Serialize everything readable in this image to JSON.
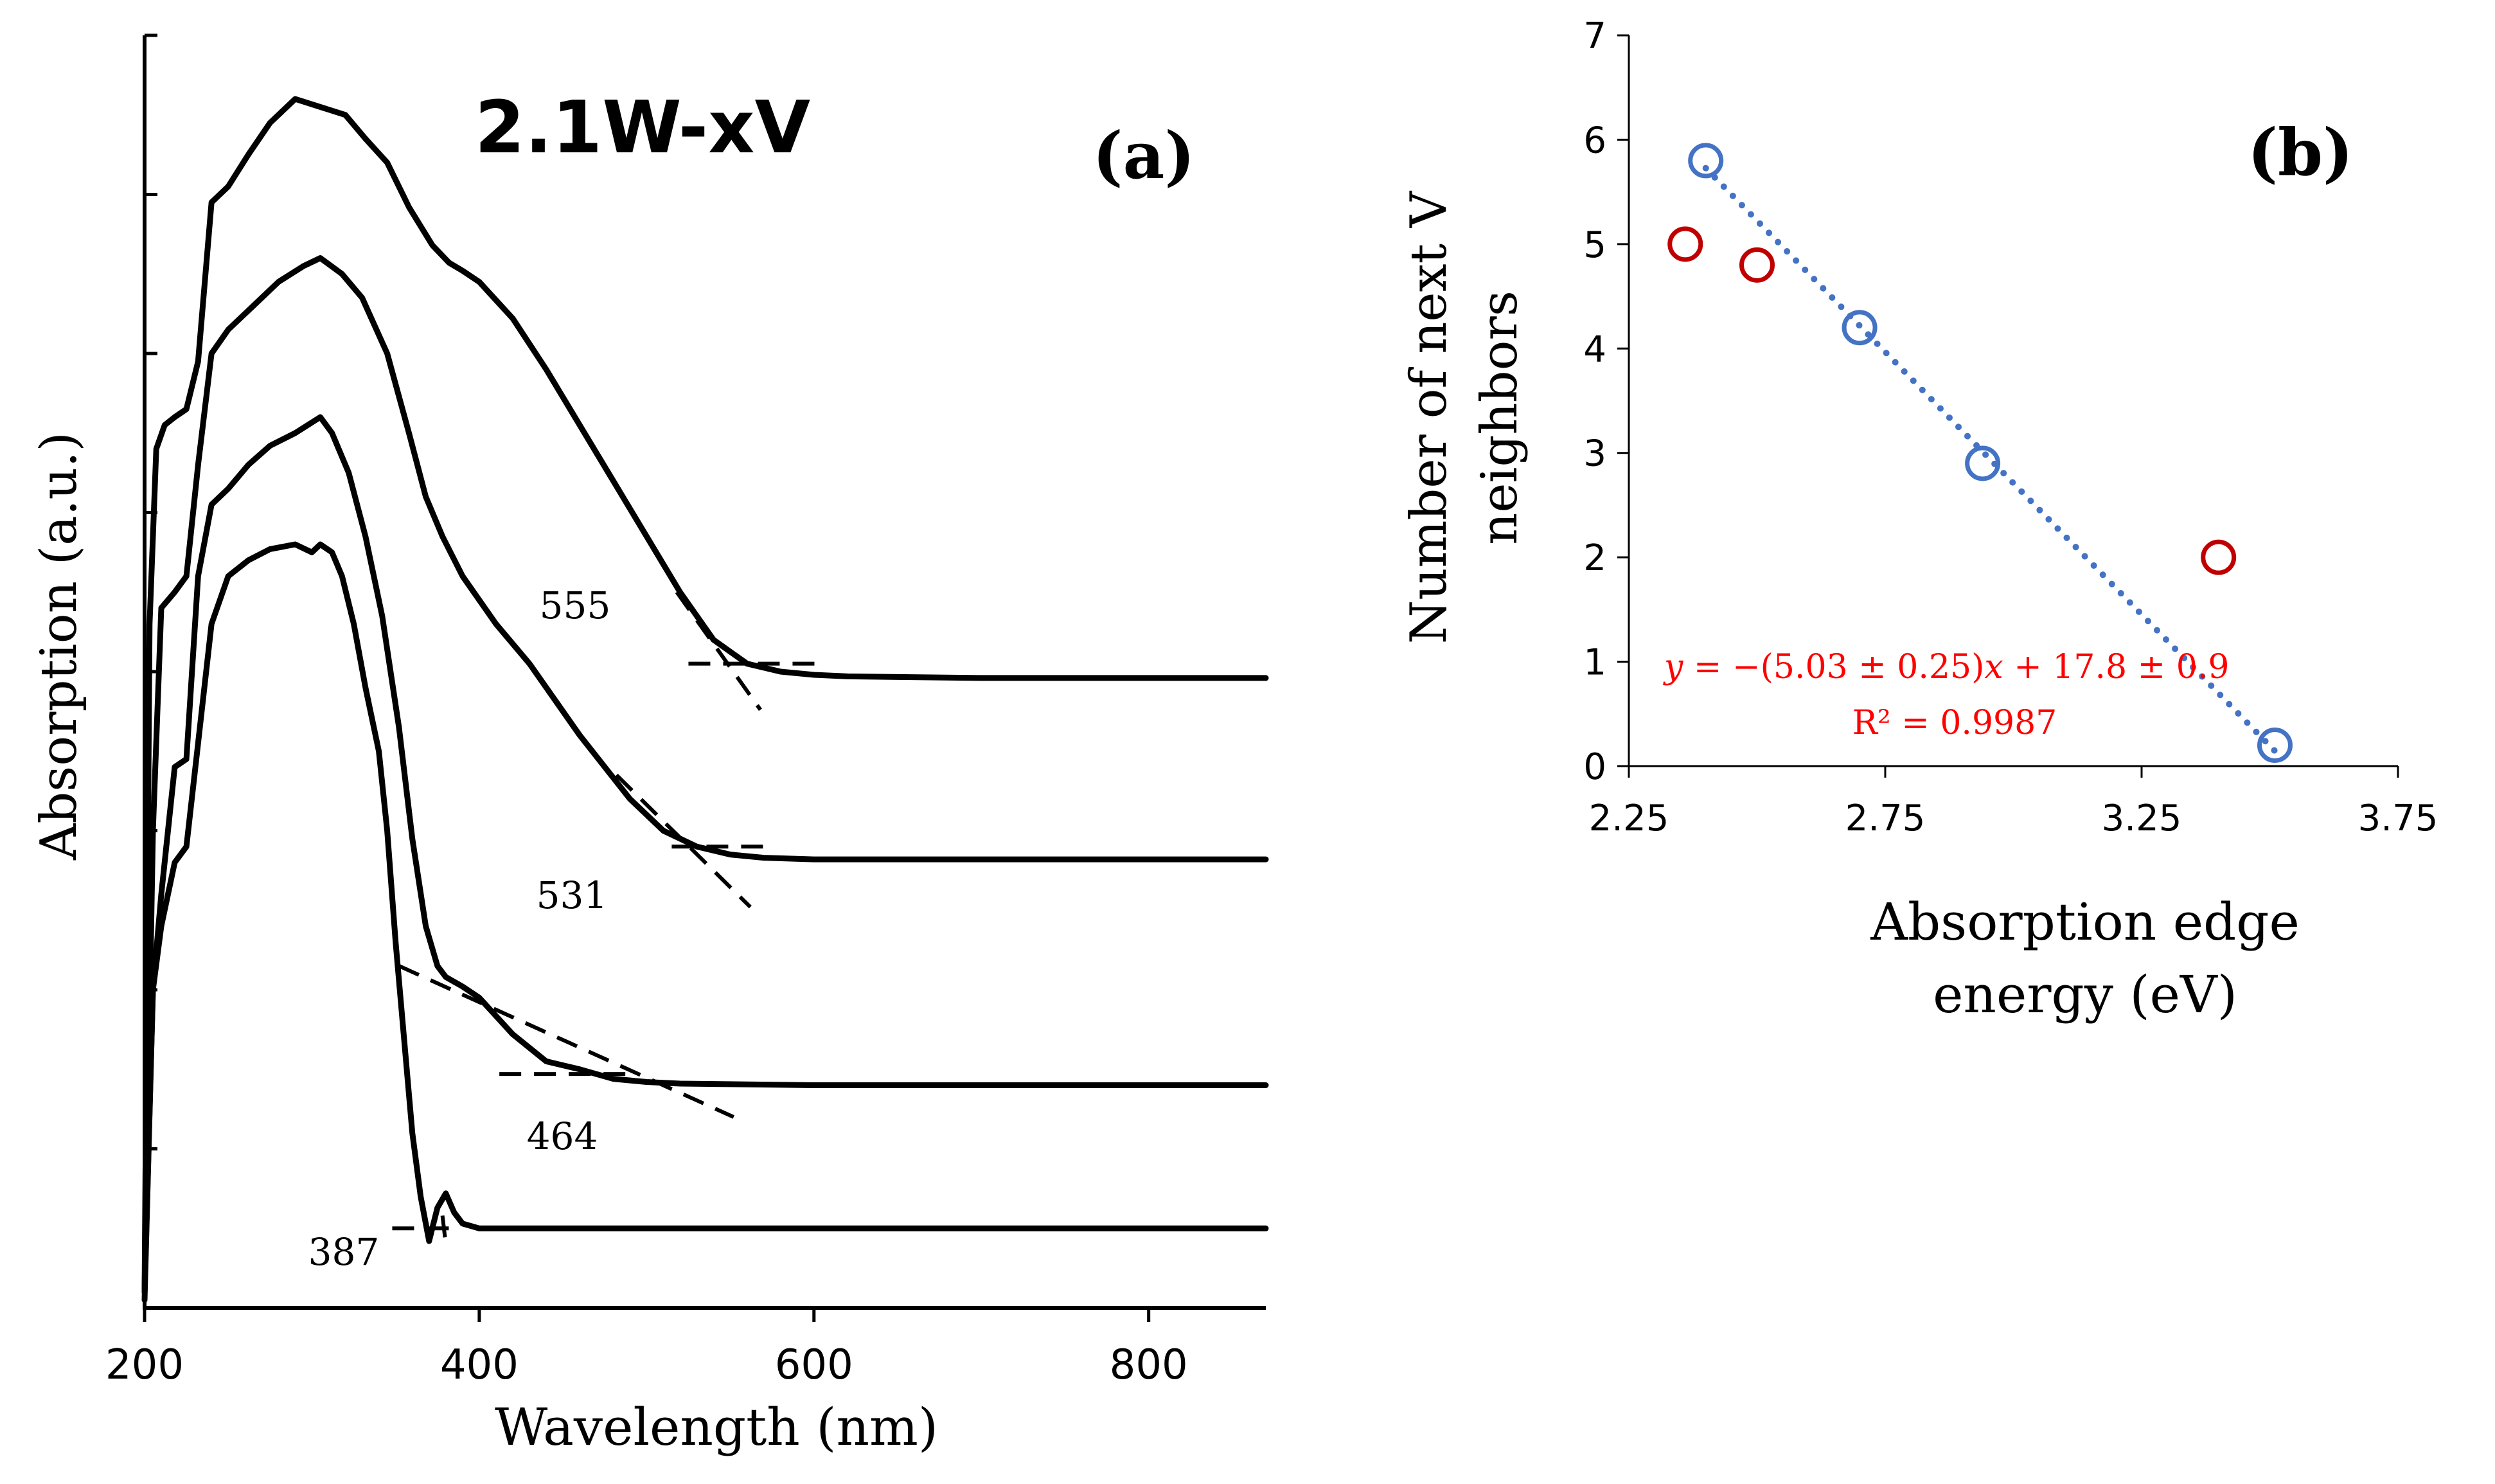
{
  "figure": {
    "panel_a_label": "(a)",
    "panel_b_label": "(b)"
  },
  "chart_data": [
    {
      "id": "a",
      "type": "line",
      "title": "2.1W-xV",
      "panel_label": "(a)",
      "xlabel": "Wavelength (nm)",
      "ylabel": "Absorption (a.u.)",
      "xlim": [
        200,
        870
      ],
      "ylim": [
        0,
        8
      ],
      "x_ticks": [
        200,
        400,
        600,
        800
      ],
      "y_ticks": [
        0,
        1,
        2,
        3,
        4,
        5,
        6,
        7,
        8
      ],
      "y_tick_labels_shown": false,
      "series": [
        {
          "name": "curve-555",
          "edge_label": "555",
          "x": [
            200,
            203,
            207,
            212,
            218,
            225,
            232,
            240,
            250,
            262,
            275,
            290,
            305,
            320,
            332,
            345,
            358,
            372,
            382,
            390,
            400,
            420,
            440,
            460,
            480,
            500,
            520,
            540,
            560,
            580,
            600,
            620,
            700,
            800,
            870
          ],
          "y": [
            0.1,
            4.3,
            5.4,
            5.55,
            5.6,
            5.65,
            5.95,
            6.95,
            7.05,
            7.25,
            7.45,
            7.6,
            7.55,
            7.5,
            7.35,
            7.2,
            6.92,
            6.68,
            6.57,
            6.52,
            6.45,
            6.22,
            5.9,
            5.55,
            5.2,
            4.85,
            4.5,
            4.2,
            4.05,
            4.0,
            3.98,
            3.97,
            3.96,
            3.96,
            3.96
          ],
          "edge_tangent": {
            "x": [
              518,
              568
            ],
            "y": [
              4.5,
              3.76
            ]
          },
          "baseline_tangent": {
            "x": [
              525,
              605
            ],
            "y": [
              4.05,
              4.05
            ]
          }
        },
        {
          "name": "curve-531",
          "edge_label": "531",
          "x": [
            200,
            205,
            210,
            218,
            225,
            232,
            240,
            250,
            265,
            280,
            295,
            305,
            318,
            330,
            345,
            358,
            368,
            378,
            390,
            410,
            430,
            460,
            490,
            510,
            530,
            550,
            570,
            600,
            700,
            800,
            870
          ],
          "y": [
            0.1,
            3.0,
            4.4,
            4.5,
            4.6,
            5.3,
            6.0,
            6.15,
            6.3,
            6.45,
            6.55,
            6.6,
            6.5,
            6.35,
            6.0,
            5.5,
            5.1,
            4.85,
            4.6,
            4.3,
            4.05,
            3.6,
            3.2,
            3.0,
            2.9,
            2.85,
            2.83,
            2.82,
            2.82,
            2.82,
            2.82
          ],
          "edge_tangent": {
            "x": [
              482,
              562
            ],
            "y": [
              3.35,
              2.52
            ]
          },
          "baseline_tangent": {
            "x": [
              515,
              575
            ],
            "y": [
              2.9,
              2.9
            ]
          }
        },
        {
          "name": "curve-464",
          "edge_label": "464",
          "x": [
            200,
            205,
            210,
            218,
            225,
            232,
            240,
            250,
            262,
            275,
            290,
            305,
            312,
            322,
            332,
            342,
            352,
            360,
            368,
            375,
            380,
            390,
            400,
            420,
            440,
            460,
            480,
            500,
            520,
            600,
            700,
            800,
            870
          ],
          "y": [
            0.05,
            2.0,
            2.6,
            3.4,
            3.45,
            4.6,
            5.05,
            5.15,
            5.3,
            5.42,
            5.5,
            5.6,
            5.5,
            5.25,
            4.85,
            4.35,
            3.65,
            2.95,
            2.4,
            2.15,
            2.08,
            2.02,
            1.95,
            1.72,
            1.55,
            1.5,
            1.44,
            1.42,
            1.41,
            1.4,
            1.4,
            1.4,
            1.4
          ],
          "edge_tangent": {
            "x": [
              352,
              552
            ],
            "y": [
              2.15,
              1.2
            ]
          },
          "baseline_tangent": {
            "x": [
              412,
              492
            ],
            "y": [
              1.47,
              1.47
            ]
          }
        },
        {
          "name": "curve-387",
          "edge_label": "387",
          "x": [
            200,
            205,
            210,
            218,
            225,
            232,
            240,
            250,
            262,
            275,
            290,
            300,
            305,
            312,
            318,
            325,
            332,
            340,
            345,
            350,
            355,
            360,
            365,
            370,
            375,
            380,
            385,
            390,
            400,
            450,
            600,
            700,
            800,
            870
          ],
          "y": [
            0.1,
            2.0,
            2.4,
            2.8,
            2.9,
            3.55,
            4.3,
            4.6,
            4.7,
            4.77,
            4.8,
            4.75,
            4.8,
            4.75,
            4.6,
            4.3,
            3.9,
            3.5,
            3.0,
            2.3,
            1.7,
            1.1,
            0.7,
            0.42,
            0.63,
            0.72,
            0.6,
            0.53,
            0.5,
            0.5,
            0.5,
            0.5,
            0.5,
            0.5
          ],
          "edge_tangent": {
            "x": [
              378,
              380
            ],
            "y": [
              0.58,
              0.4
            ]
          },
          "baseline_tangent": {
            "x": [
              348,
              384
            ],
            "y": [
              0.5,
              0.5
            ]
          }
        }
      ]
    },
    {
      "id": "b",
      "type": "scatter",
      "panel_label": "(b)",
      "xlabel": [
        "Absorption edge",
        "energy (eV)"
      ],
      "ylabel": [
        "Number of next V",
        "neighbors"
      ],
      "xlim": [
        2.25,
        3.75
      ],
      "ylim": [
        0,
        7
      ],
      "x_ticks": [
        2.25,
        2.75,
        3.25,
        3.75
      ],
      "x_tick_labels": [
        "2.25",
        "2.75",
        "3.25",
        "3.75"
      ],
      "y_ticks": [
        0,
        1,
        2,
        3,
        4,
        5,
        6,
        7
      ],
      "y_tick_labels": [
        "0",
        "1",
        "2",
        "3",
        "4",
        "5",
        "6",
        "7"
      ],
      "series": [
        {
          "name": "fitted",
          "color": "#4472c4",
          "x": [
            2.4,
            2.7,
            2.94,
            3.51
          ],
          "y": [
            5.8,
            4.2,
            2.9,
            0.2
          ]
        },
        {
          "name": "outliers",
          "color": "#c00000",
          "x": [
            2.36,
            2.5,
            3.4
          ],
          "y": [
            5.0,
            4.8,
            2.0
          ]
        }
      ],
      "trendline": {
        "style": "dotted",
        "color": "#4472c4",
        "slope": -5.03,
        "intercept": 17.8,
        "x_range": [
          2.4,
          3.51
        ]
      },
      "annotations": {
        "equation_y": "y",
        "equation_mid": " = −(5.03 ± 0.25)",
        "equation_x": "x",
        "equation_end": " + 17.8 ± 0.9",
        "r_squared": "R² = 0.9987",
        "color": "#ff0000"
      }
    }
  ]
}
